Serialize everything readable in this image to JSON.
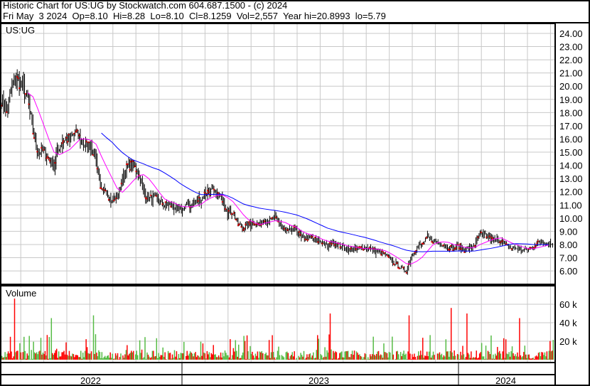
{
  "header": {
    "title": "Historic Chart for US:UG by Stockwatch.com 604.687.1500 - (c) 2024",
    "quote": "Fri May  3 2024  Op=8.10  Hi=8.28  Lo=8.10  Cl=8.1259  Vol=2,557  Year hi=20.8993  lo=5.79"
  },
  "colors": {
    "up": "#e00000",
    "down": "#000000",
    "ma_short": "#ff00ff",
    "ma_long": "#0000ff",
    "vol_up": "#ff0000",
    "vol_down": "#55bb44",
    "grid": "#c8c8c8"
  },
  "chart_data": [
    {
      "type": "line",
      "title": "US:UG",
      "ylim": [
        5,
        25
      ],
      "y_ticks": [
        "6.00",
        "7.00",
        "8.00",
        "9.00",
        "10.00",
        "11.00",
        "12.00",
        "13.00",
        "14.00",
        "15.00",
        "16.00",
        "17.00",
        "18.00",
        "19.00",
        "20.00",
        "21.00",
        "22.00",
        "23.00",
        "24.00"
      ],
      "x_tick_labels": [
        "2022",
        "2023",
        "2024"
      ],
      "grid": true,
      "weekly_close": [
        19,
        18,
        20,
        20.5,
        20,
        19,
        16.5,
        15,
        15,
        14.5,
        14,
        15.5,
        16,
        16,
        16.5,
        16,
        15.5,
        15.5,
        14.5,
        12,
        11.8,
        11.5,
        11.5,
        13,
        14,
        14,
        13.5,
        12,
        11.5,
        11.5,
        11.3,
        11,
        11,
        10.8,
        10.5,
        11,
        11,
        11.3,
        11.5,
        12,
        12,
        11.8,
        11.5,
        10.5,
        10.5,
        9.5,
        9.3,
        9.5,
        9.7,
        9.5,
        10,
        9.8,
        10,
        9.5,
        9,
        9,
        9.2,
        8.5,
        8.5,
        8.5,
        8.3,
        8.2,
        7.8,
        8.2,
        8,
        7.8,
        7.6,
        7.6,
        7.7,
        7.8,
        7.7,
        7.5,
        7.4,
        7.2,
        6.8,
        6.5,
        6.2,
        6,
        7.2,
        7.8,
        8,
        8.5,
        8.3,
        8.2,
        8,
        7.8,
        7.7,
        7.9,
        7.6,
        7.7,
        8,
        8.8,
        8.7,
        8.4,
        8.3,
        8.3,
        7.9,
        7.7,
        7.7,
        7.6,
        7.6,
        7.8,
        8.1,
        8.2,
        8.1
      ]
    },
    {
      "type": "bar",
      "title": "Volume",
      "ylim": [
        0,
        70000
      ],
      "y_ticks": [
        "20 k",
        "40 k",
        "60 k"
      ],
      "volume_spikes_k": [
        [
          2,
          68
        ],
        [
          9,
          45
        ],
        [
          17,
          48
        ],
        [
          62,
          50
        ],
        [
          77,
          48
        ],
        [
          85,
          56
        ],
        [
          88,
          50
        ],
        [
          98,
          45
        ]
      ]
    }
  ]
}
